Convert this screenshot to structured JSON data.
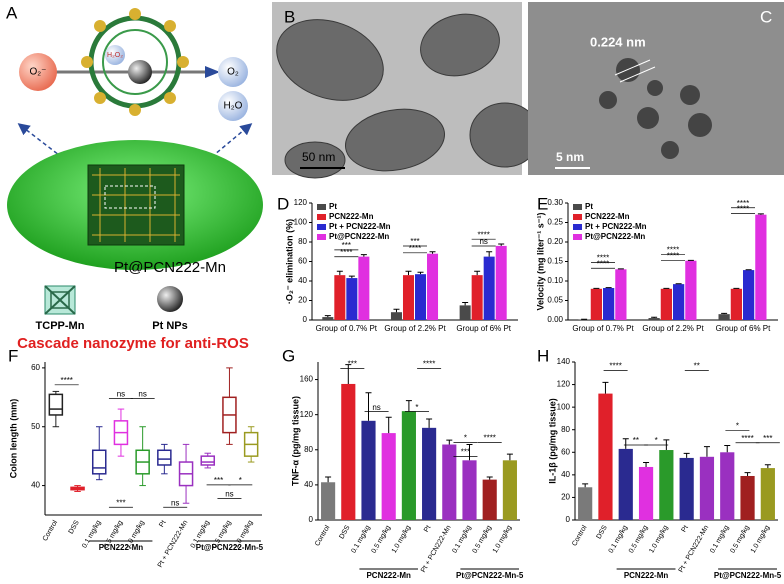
{
  "figure": {
    "A": {
      "label": "A",
      "superoxide": "O₂⁻",
      "h2o2": "H₂O₂",
      "o2": "O₂",
      "h2o": "H₂O",
      "material": "Pt@PCN222-Mn",
      "legend_tcpp": "TCPP-Mn",
      "legend_pt": "Pt NPs",
      "caption": "Cascade nanozyme for anti-ROS"
    },
    "B": {
      "label": "B",
      "scale_bar": "50 nm"
    },
    "C": {
      "label": "C",
      "lattice": "0.224 nm",
      "scale_bar": "5 nm"
    }
  },
  "chart_data": [
    {
      "type": "grouped-bar",
      "panel": "D",
      "y_label": "·O₂⁻ elimination (%)",
      "categories": [
        "Group of 0.7% Pt",
        "Group of 2.2% Pt",
        "Group of 6% Pt"
      ],
      "series": [
        {
          "name": "Pt",
          "color": "#4a4a4a",
          "values": [
            3,
            8,
            15
          ],
          "errors": [
            1.5,
            3,
            3
          ]
        },
        {
          "name": "PCN222-Mn",
          "color": "#e0202a",
          "values": [
            46,
            46,
            46
          ],
          "errors": [
            4,
            4,
            4
          ]
        },
        {
          "name": "Pt + PCN222-Mn",
          "color": "#2a2ad0",
          "values": [
            43,
            47,
            65
          ],
          "errors": [
            2,
            2,
            5
          ]
        },
        {
          "name": "Pt@PCN222-Mn",
          "color": "#e030e0",
          "values": [
            65,
            68,
            76
          ],
          "errors": [
            2,
            2,
            2
          ]
        }
      ],
      "annotations": [
        "***",
        "****",
        "***",
        "****",
        "****",
        "ns"
      ],
      "ylim": [
        0,
        120
      ],
      "yticks": [
        0,
        20,
        40,
        60,
        80,
        100,
        120
      ]
    },
    {
      "type": "grouped-bar",
      "panel": "E",
      "y_label": "Velocity (mg liter⁻¹ s⁻¹)",
      "categories": [
        "Group of 0.7% Pt",
        "Group of 2.2% Pt",
        "Group of 6% Pt"
      ],
      "series": [
        {
          "name": "Pt",
          "color": "#4a4a4a",
          "values": [
            0.001,
            0.005,
            0.015
          ],
          "errors": [
            0.001,
            0.002,
            0.002
          ]
        },
        {
          "name": "PCN222-Mn",
          "color": "#e0202a",
          "values": [
            0.08,
            0.08,
            0.08
          ],
          "errors": [
            0.001,
            0.001,
            0.001
          ]
        },
        {
          "name": "Pt + PCN222-Mn",
          "color": "#2a2ad0",
          "values": [
            0.082,
            0.092,
            0.128
          ],
          "errors": [
            0.001,
            0.001,
            0.001
          ]
        },
        {
          "name": "Pt@PCN222-Mn",
          "color": "#e030e0",
          "values": [
            0.13,
            0.152,
            0.27
          ],
          "errors": [
            0.001,
            0.001,
            0.002
          ]
        }
      ],
      "annotations": [
        "****",
        "****",
        "****",
        "****",
        "****",
        "****"
      ],
      "ylim": [
        0,
        0.3
      ],
      "yticks": [
        {
          "value": 0,
          "label": "0.00"
        },
        0.05,
        {
          "value": 0.1,
          "label": "0.10"
        },
        0.15,
        {
          "value": 0.2,
          "label": "0.20"
        },
        0.25,
        {
          "value": 0.3,
          "label": "0.30"
        }
      ]
    },
    {
      "type": "box",
      "panel": "F",
      "y_label": "Colon length (mm)",
      "categories": [
        "Control",
        "DSS",
        "0.1 mg/kg",
        "0.5 mg/kg",
        "1.0 mg/kg",
        "Pt",
        "Pt + PCN222-Mn",
        "0.1 mg/kg",
        "0.5 mg/kg",
        "1.0 mg/kg"
      ],
      "group_labels": [
        "PCN222-Mn",
        "Pt@PCN222-Mn-5"
      ],
      "colors": [
        "#222222",
        "#e0202a",
        "#2a2a90",
        "#e030e0",
        "#2a9a2a",
        "#2a2a90",
        "#9a30c0",
        "#9a30c0",
        "#a02020",
        "#9a9a20"
      ],
      "values": [
        {
          "min": 50,
          "q1": 52,
          "median": 53,
          "q3": 55.5,
          "max": 56
        },
        {
          "min": 39,
          "q1": 39.3,
          "median": 39.5,
          "q3": 39.7,
          "max": 40
        },
        {
          "min": 41,
          "q1": 42,
          "median": 43,
          "q3": 46,
          "max": 50
        },
        {
          "min": 45,
          "q1": 47,
          "median": 49,
          "q3": 51,
          "max": 53
        },
        {
          "min": 40,
          "q1": 42,
          "median": 44,
          "q3": 46,
          "max": 50
        },
        {
          "min": 42,
          "q1": 43.5,
          "median": 44.5,
          "q3": 46,
          "max": 47
        },
        {
          "min": 37,
          "q1": 40,
          "median": 42,
          "q3": 44,
          "max": 47
        },
        {
          "min": 43,
          "q1": 43.5,
          "median": 44,
          "q3": 45,
          "max": 45.5
        },
        {
          "min": 47,
          "q1": 49,
          "median": 52,
          "q3": 55,
          "max": 60
        },
        {
          "min": 44,
          "q1": 45,
          "median": 47,
          "q3": 49,
          "max": 50
        }
      ],
      "annotations": [
        "****",
        "ns",
        "ns",
        "***",
        "ns",
        "***",
        "*",
        "ns"
      ],
      "ylim": [
        35,
        61
      ],
      "yticks": [
        40,
        50,
        60
      ]
    },
    {
      "type": "bar",
      "panel": "G",
      "y_label": "TNF-α (pg/mg tissue)",
      "categories": [
        "Control",
        "DSS",
        "0.1 mg/kg",
        "0.5 mg/kg",
        "1.0 mg/kg",
        "Pt",
        "Pt + PCN222-Mn",
        "0.1 mg/kg",
        "0.5 mg/kg",
        "1.0 mg/kg"
      ],
      "group_labels": [
        "PCN222-Mn",
        "Pt@PCN222-Mn-5"
      ],
      "colors": [
        "#7a7a7a",
        "#e0202a",
        "#2a2a90",
        "#e030e0",
        "#2a9a2a",
        "#2a2a90",
        "#9a30c0",
        "#9a30c0",
        "#a02020",
        "#9a9a20"
      ],
      "values": [
        43,
        155,
        113,
        99,
        124,
        105,
        86,
        68,
        46,
        68
      ],
      "errors": [
        6,
        22,
        32,
        18,
        12,
        10,
        5,
        18,
        3,
        7
      ],
      "annotations": [
        "***",
        "****",
        "ns",
        "*",
        "*",
        "****",
        "***"
      ],
      "ylim": [
        0,
        180
      ],
      "yticks": [
        0,
        40,
        80,
        120,
        160
      ]
    },
    {
      "type": "bar",
      "panel": "H",
      "y_label": "IL-1β (pg/mg tissue)",
      "categories": [
        "Control",
        "DSS",
        "0.1 mg/kg",
        "0.5 mg/kg",
        "1.0 mg/kg",
        "Pt",
        "Pt + PCN222-Mn",
        "0.1 mg/kg",
        "0.5 mg/kg",
        "1.0 mg/kg"
      ],
      "group_labels": [
        "PCN222-Mn",
        "Pt@PCN222-Mn-5"
      ],
      "colors": [
        "#7a7a7a",
        "#e0202a",
        "#2a2a90",
        "#e030e0",
        "#2a9a2a",
        "#2a2a90",
        "#9a30c0",
        "#9a30c0",
        "#a02020",
        "#9a9a20"
      ],
      "values": [
        29,
        112,
        63,
        47,
        62,
        55,
        56,
        60,
        39,
        46
      ],
      "errors": [
        3,
        10,
        9,
        4,
        9,
        4,
        9,
        6,
        3,
        3
      ],
      "annotations": [
        "****",
        "**",
        "**",
        "*",
        "****",
        "***",
        "*"
      ],
      "ylim": [
        0,
        140
      ],
      "yticks": [
        0,
        20,
        40,
        60,
        80,
        100,
        120,
        140
      ]
    }
  ]
}
